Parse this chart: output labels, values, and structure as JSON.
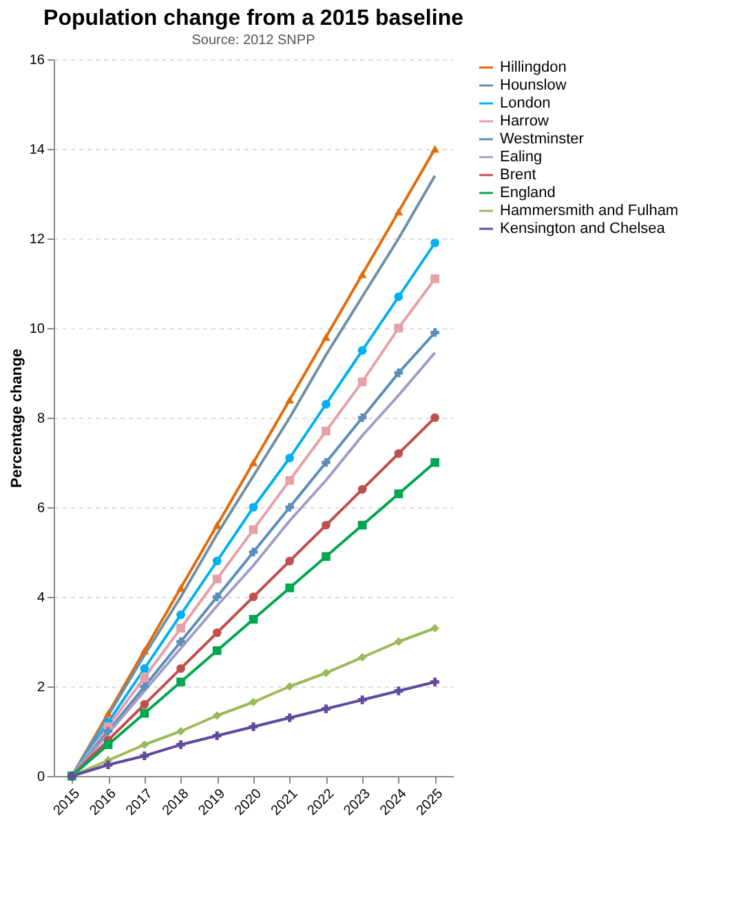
{
  "chart_data": {
    "type": "line",
    "title": "Population change from a 2015 baseline",
    "ylabel": "Percentage change",
    "categories": [
      "2015",
      "2016",
      "2017",
      "2018",
      "2019",
      "2020",
      "2021",
      "2022",
      "2023",
      "2024",
      "2025"
    ],
    "ylim": [
      0,
      16
    ],
    "yticks": [
      0,
      2,
      4,
      6,
      8,
      10,
      12,
      14,
      16
    ],
    "grid": "y",
    "legend": "right",
    "annotations": [
      "Source: 2012 SNPP"
    ],
    "series": [
      {
        "name": "Hillingdon",
        "color": "#e36c0a",
        "marker": "triangle",
        "values": [
          0,
          1.4,
          2.8,
          4.2,
          5.6,
          7.0,
          8.4,
          9.8,
          11.2,
          12.6,
          14.0
        ]
      },
      {
        "name": "Hounslow",
        "color": "#6f90a8",
        "marker": "none",
        "values": [
          0,
          1.35,
          2.7,
          4.0,
          5.4,
          6.7,
          8.0,
          9.4,
          10.7,
          12.0,
          13.4
        ]
      },
      {
        "name": "London",
        "color": "#00b0f0",
        "marker": "circle",
        "values": [
          0,
          1.2,
          2.4,
          3.6,
          4.8,
          6.0,
          7.1,
          8.3,
          9.5,
          10.7,
          11.9
        ]
      },
      {
        "name": "Harrow",
        "color": "#e6a0a8",
        "marker": "square",
        "values": [
          0,
          1.1,
          2.2,
          3.3,
          4.4,
          5.5,
          6.6,
          7.7,
          8.8,
          10.0,
          11.1
        ]
      },
      {
        "name": "Westminster",
        "color": "#5b8fb9",
        "marker": "cross",
        "values": [
          0,
          1.0,
          2.0,
          3.0,
          4.0,
          5.0,
          6.0,
          7.0,
          8.0,
          9.0,
          9.9
        ]
      },
      {
        "name": "Ealing",
        "color": "#a09cc8",
        "marker": "none",
        "values": [
          0,
          0.95,
          1.9,
          2.85,
          3.8,
          4.7,
          5.7,
          6.6,
          7.6,
          8.5,
          9.45
        ]
      },
      {
        "name": "Brent",
        "color": "#c0504d",
        "marker": "circle",
        "values": [
          0,
          0.8,
          1.6,
          2.4,
          3.2,
          4.0,
          4.8,
          5.6,
          6.4,
          7.2,
          8.0
        ]
      },
      {
        "name": "England",
        "color": "#00a650",
        "marker": "square",
        "values": [
          0,
          0.7,
          1.4,
          2.1,
          2.8,
          3.5,
          4.2,
          4.9,
          5.6,
          6.3,
          7.0
        ]
      },
      {
        "name": "Hammersmith and Fulham",
        "color": "#9bbb59",
        "marker": "diamond",
        "values": [
          0,
          0.35,
          0.7,
          1.0,
          1.35,
          1.65,
          2.0,
          2.3,
          2.65,
          3.0,
          3.3
        ]
      },
      {
        "name": "Kensington and Chelsea",
        "color": "#604a9b",
        "marker": "cross",
        "values": [
          0,
          0.25,
          0.45,
          0.7,
          0.9,
          1.1,
          1.3,
          1.5,
          1.7,
          1.9,
          2.1
        ]
      }
    ]
  }
}
